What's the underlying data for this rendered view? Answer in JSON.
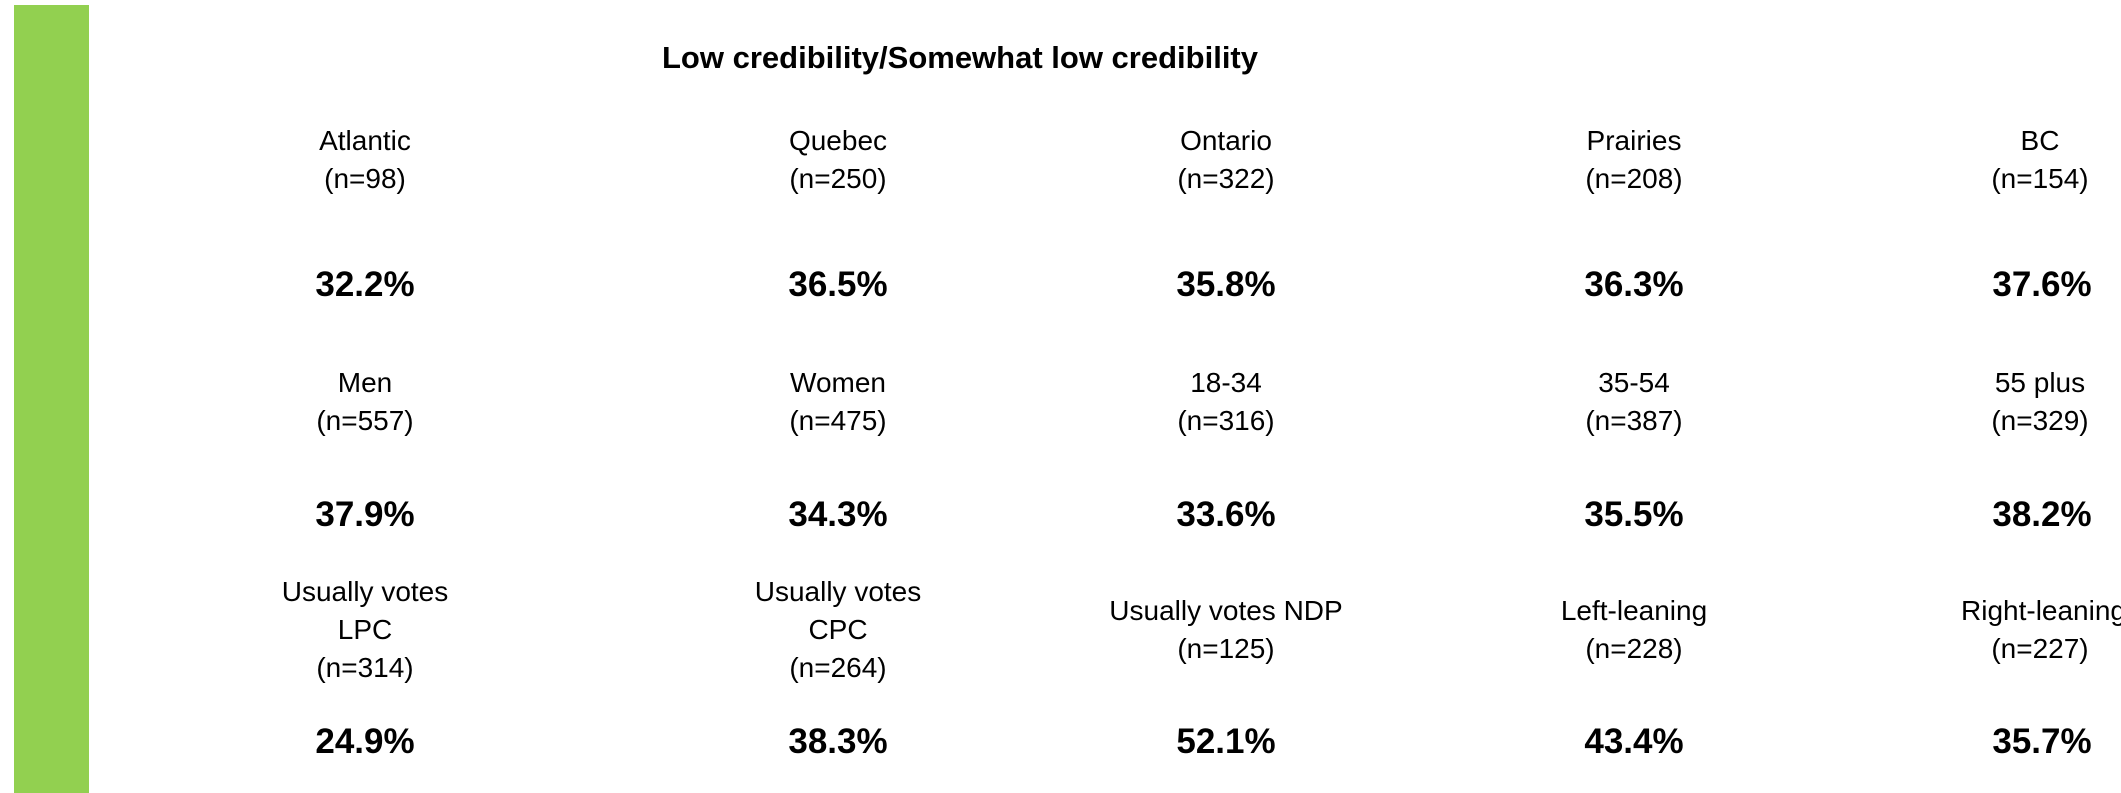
{
  "title": "Low credibility/Somewhat low credibility",
  "groups": [
    {
      "cells": [
        {
          "label_lines": [
            "Atlantic",
            "(n=98)"
          ],
          "value": "32.2%"
        },
        {
          "label_lines": [
            "Quebec",
            "(n=250)"
          ],
          "value": "36.5%"
        },
        {
          "label_lines": [
            "Ontario",
            "(n=322)"
          ],
          "value": "35.8%"
        },
        {
          "label_lines": [
            "Prairies",
            "(n=208)"
          ],
          "value": "36.3%"
        },
        {
          "label_lines": [
            "BC",
            "(n=154)"
          ],
          "value": "37.6%"
        }
      ]
    },
    {
      "cells": [
        {
          "label_lines": [
            "Men",
            "(n=557)"
          ],
          "value": "37.9%"
        },
        {
          "label_lines": [
            "Women",
            "(n=475)"
          ],
          "value": "34.3%"
        },
        {
          "label_lines": [
            "18-34",
            "(n=316)"
          ],
          "value": "33.6%"
        },
        {
          "label_lines": [
            "35-54",
            "(n=387)"
          ],
          "value": "35.5%"
        },
        {
          "label_lines": [
            "55 plus",
            "(n=329)"
          ],
          "value": "38.2%"
        }
      ]
    },
    {
      "cells": [
        {
          "label_lines": [
            "Usually votes",
            "LPC",
            "(n=314)"
          ],
          "value": "24.9%"
        },
        {
          "label_lines": [
            "Usually votes",
            "CPC",
            "(n=264)"
          ],
          "value": "38.3%"
        },
        {
          "label_lines": [
            "Usually votes NDP",
            "(n=125)"
          ],
          "value": "52.1%"
        },
        {
          "label_lines": [
            "Left-leaning",
            "(n=228)"
          ],
          "value": "43.4%"
        },
        {
          "label_lines": [
            "Right-leaning",
            "(n=227)"
          ],
          "value": "35.7%"
        }
      ]
    }
  ],
  "colors": {
    "accent_bar": "#92d050",
    "text": "#000000",
    "background": "#ffffff"
  }
}
